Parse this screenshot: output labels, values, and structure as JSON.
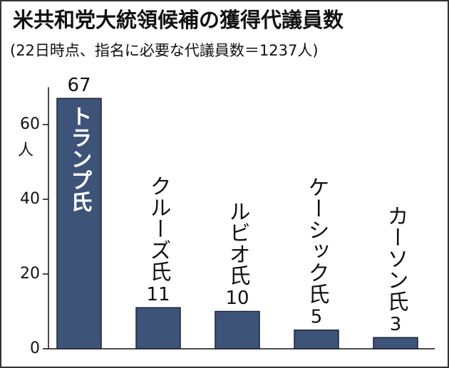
{
  "chart_data": {
    "type": "bar",
    "title": "米共和党大統領候補の獲得代議員数",
    "subtitle": "(22日時点、指名に必要な代議員数＝1237人)",
    "y_unit": "人",
    "categories": [
      "トランプ氏",
      "クルーズ氏",
      "ルビオ氏",
      "ケーシック氏",
      "カーソン氏"
    ],
    "values": [
      67,
      11,
      10,
      5,
      3
    ],
    "color": "#3e5378",
    "ylim": [
      0,
      70
    ],
    "yticks": [
      0,
      20,
      40,
      60
    ]
  }
}
